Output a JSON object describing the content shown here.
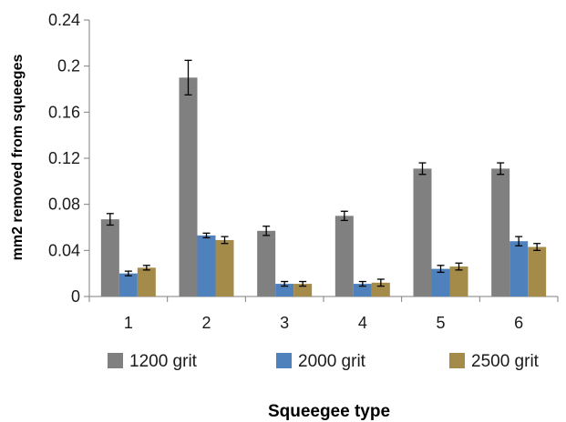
{
  "chart_data": {
    "type": "bar",
    "title": "",
    "xlabel": "Squeegee type",
    "ylabel": "mm2 removed from squeeges",
    "categories": [
      "1",
      "2",
      "3",
      "4",
      "5",
      "6"
    ],
    "ylim": [
      0,
      0.24
    ],
    "yticks": [
      0,
      0.04,
      0.08,
      0.12,
      0.16,
      0.2,
      0.24
    ],
    "ytick_labels": [
      "0",
      "0.04",
      "0.08",
      "0.12",
      "0.16",
      "0.2",
      "0.24"
    ],
    "grid": false,
    "legend_position": "bottom",
    "series": [
      {
        "name": "1200 grit",
        "color": "#808080",
        "values": [
          0.067,
          0.19,
          0.057,
          0.07,
          0.111,
          0.111
        ],
        "errors": [
          0.005,
          0.015,
          0.004,
          0.004,
          0.005,
          0.005
        ]
      },
      {
        "name": "2000 grit",
        "color": "#4f81bd",
        "values": [
          0.02,
          0.053,
          0.011,
          0.011,
          0.024,
          0.048
        ],
        "errors": [
          0.002,
          0.002,
          0.002,
          0.002,
          0.003,
          0.004
        ]
      },
      {
        "name": "2500 grit",
        "color": "#a58b49",
        "values": [
          0.025,
          0.049,
          0.011,
          0.012,
          0.026,
          0.043
        ],
        "errors": [
          0.002,
          0.003,
          0.002,
          0.003,
          0.003,
          0.003
        ]
      }
    ]
  }
}
